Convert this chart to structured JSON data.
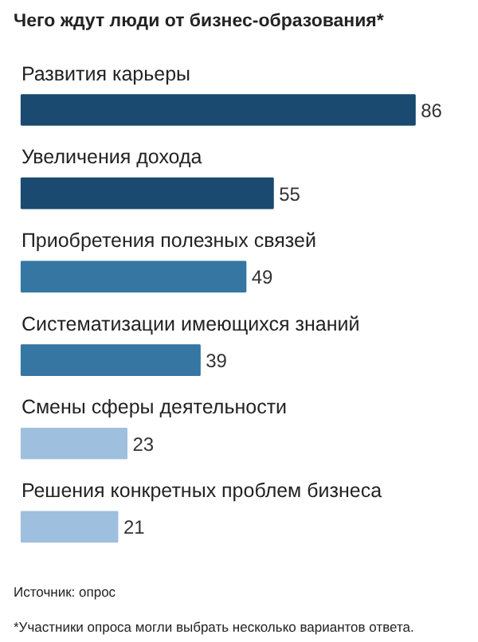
{
  "chart_data": {
    "type": "bar",
    "orientation": "horizontal",
    "title": "Чего ждут люди от бизнес-образования*",
    "categories": [
      "Развития карьеры",
      "Увеличения дохода",
      "Приобретения полезных связей",
      "Систематизации имеющихся знаний",
      "Смены сферы деятельности",
      "Решения конкретных проблем бизнеса"
    ],
    "values": [
      86,
      55,
      49,
      39,
      23,
      21
    ],
    "colors": [
      "#1b4a70",
      "#1b4a70",
      "#3576a2",
      "#3576a2",
      "#9fbfdf",
      "#9fbfdf"
    ],
    "data_labels": true,
    "annotations": [
      "Источник: опрос",
      "*Участники опроса могли выбрать несколько вариантов ответа."
    ]
  }
}
